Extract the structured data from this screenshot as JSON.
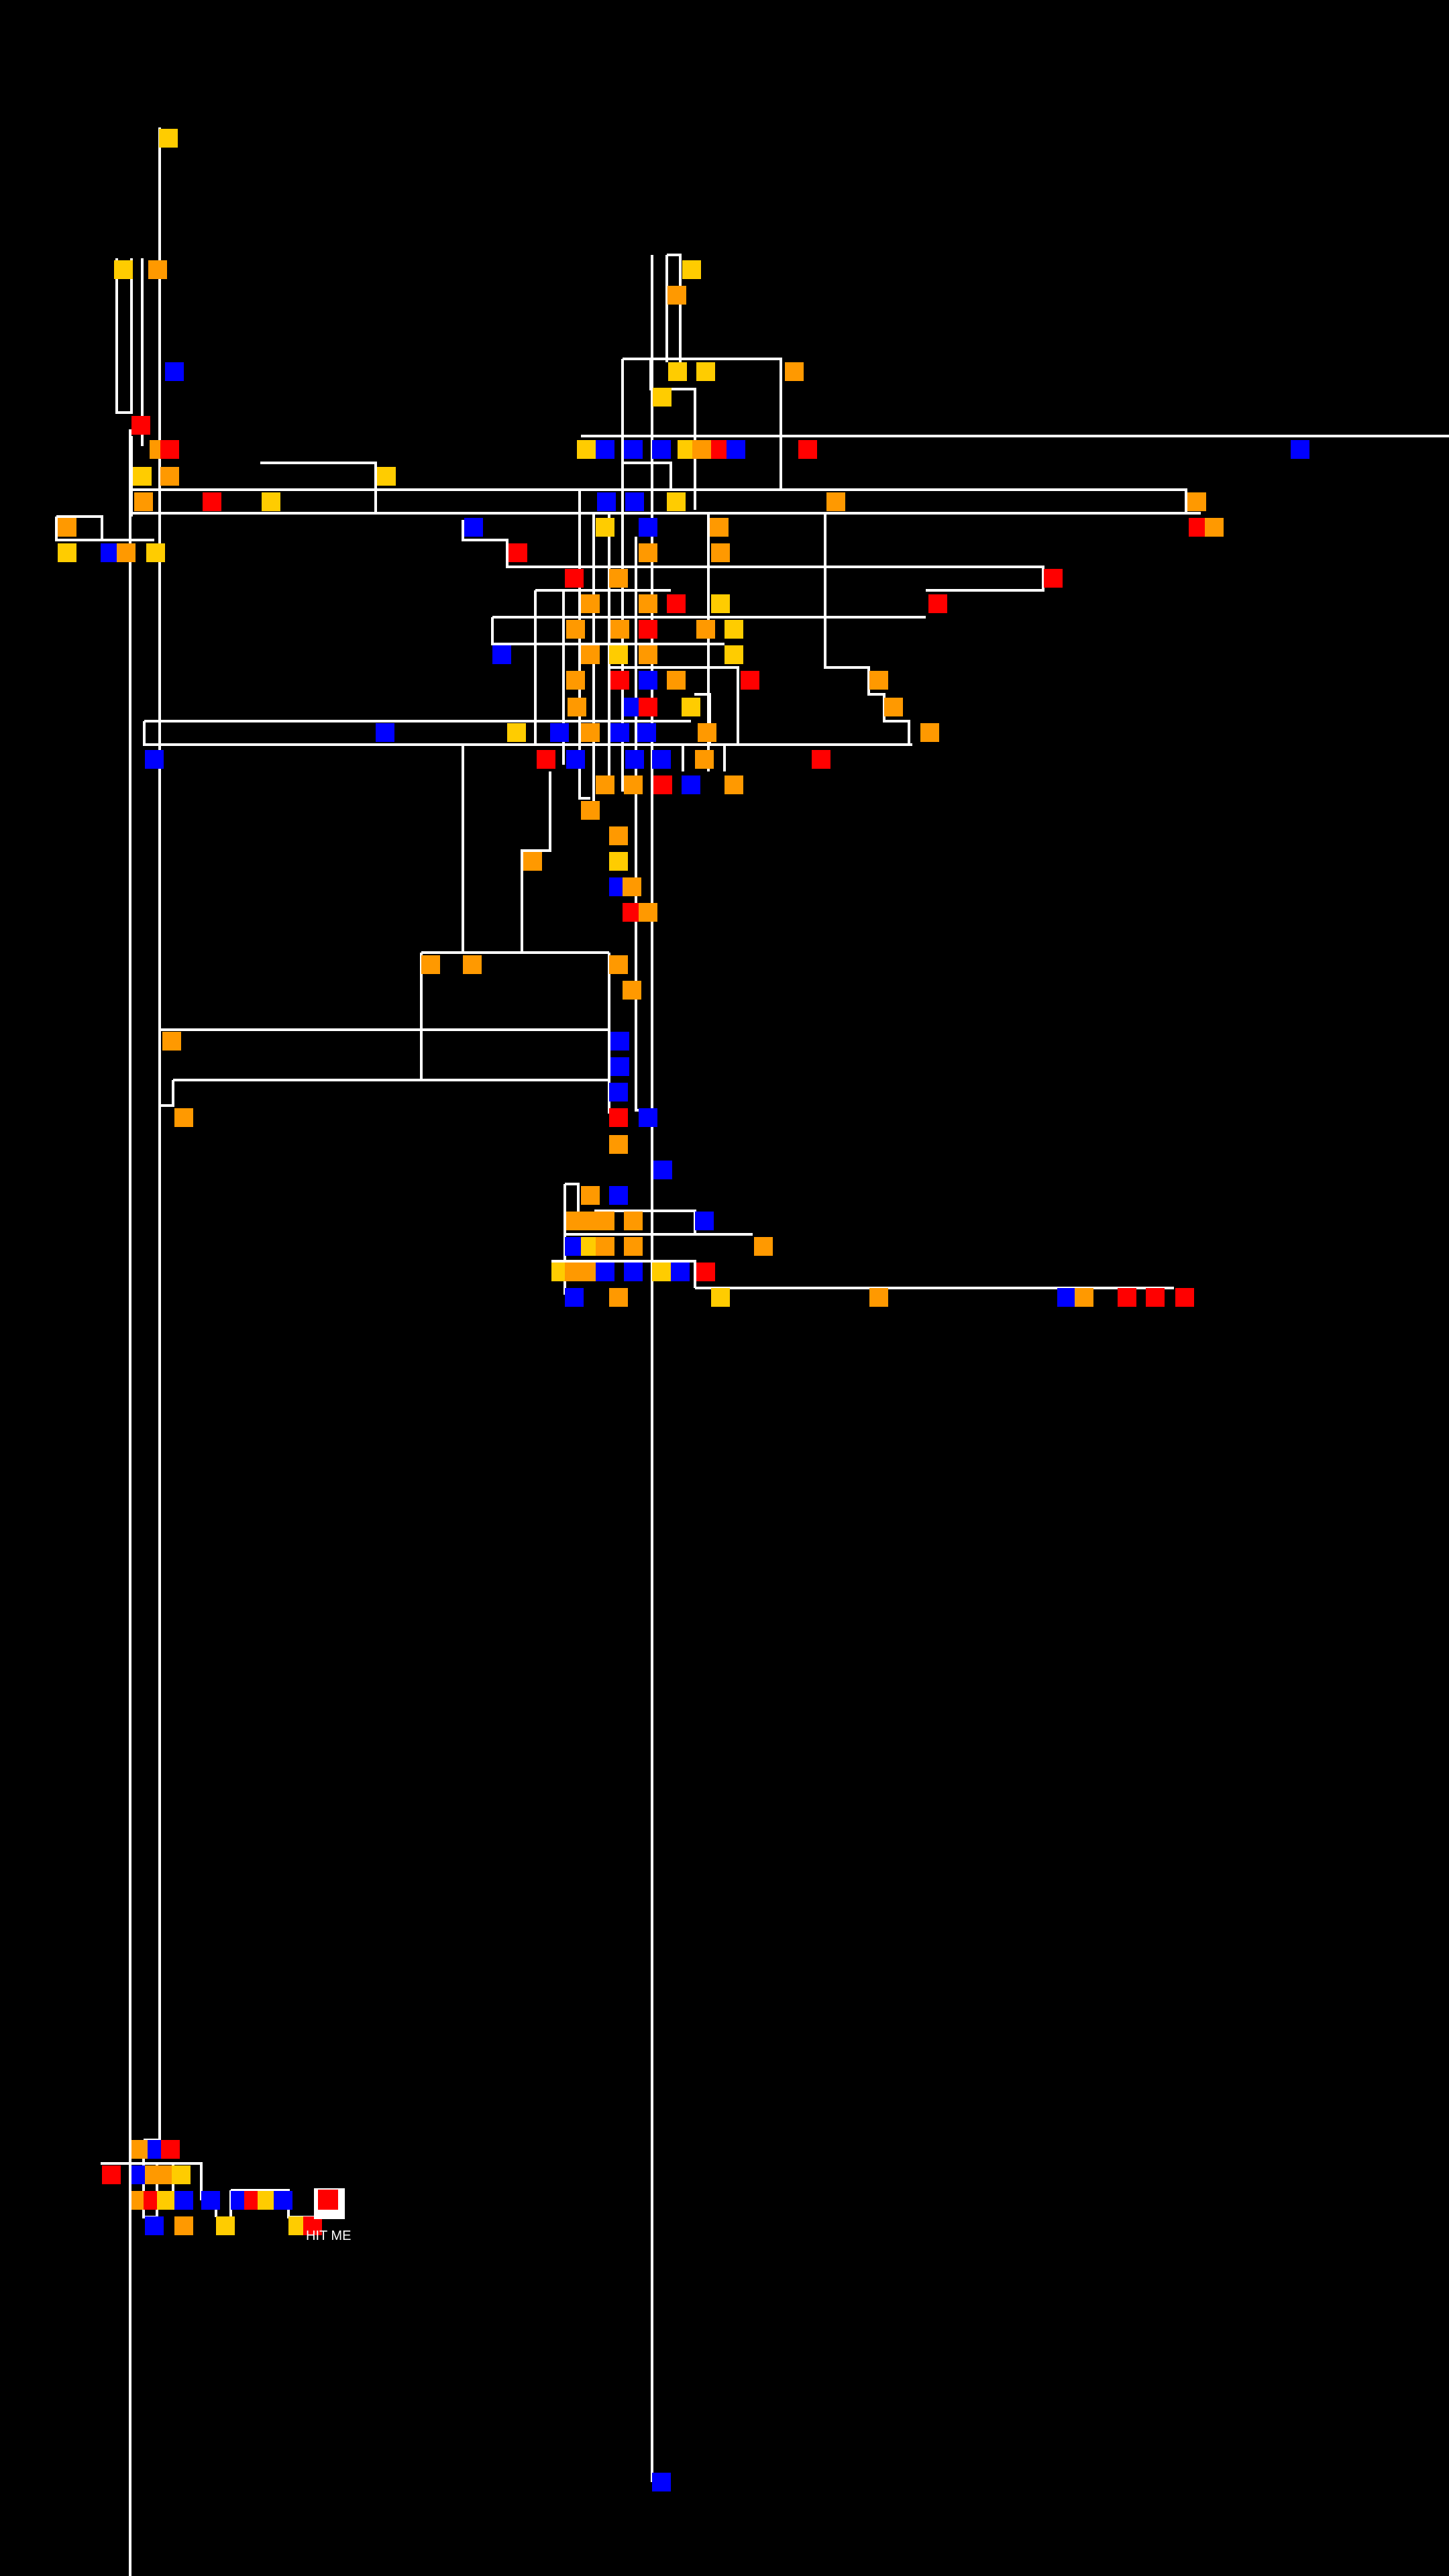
{
  "background_color": "#000000",
  "line_color": "#ffffff",
  "colors": {
    "yellow": "#ffcc00",
    "orange": "#ff9900",
    "red": "#ff0000",
    "blue": "#0000ff",
    "white": "#ffffff"
  },
  "target": {
    "label": "HIT ME"
  }
}
